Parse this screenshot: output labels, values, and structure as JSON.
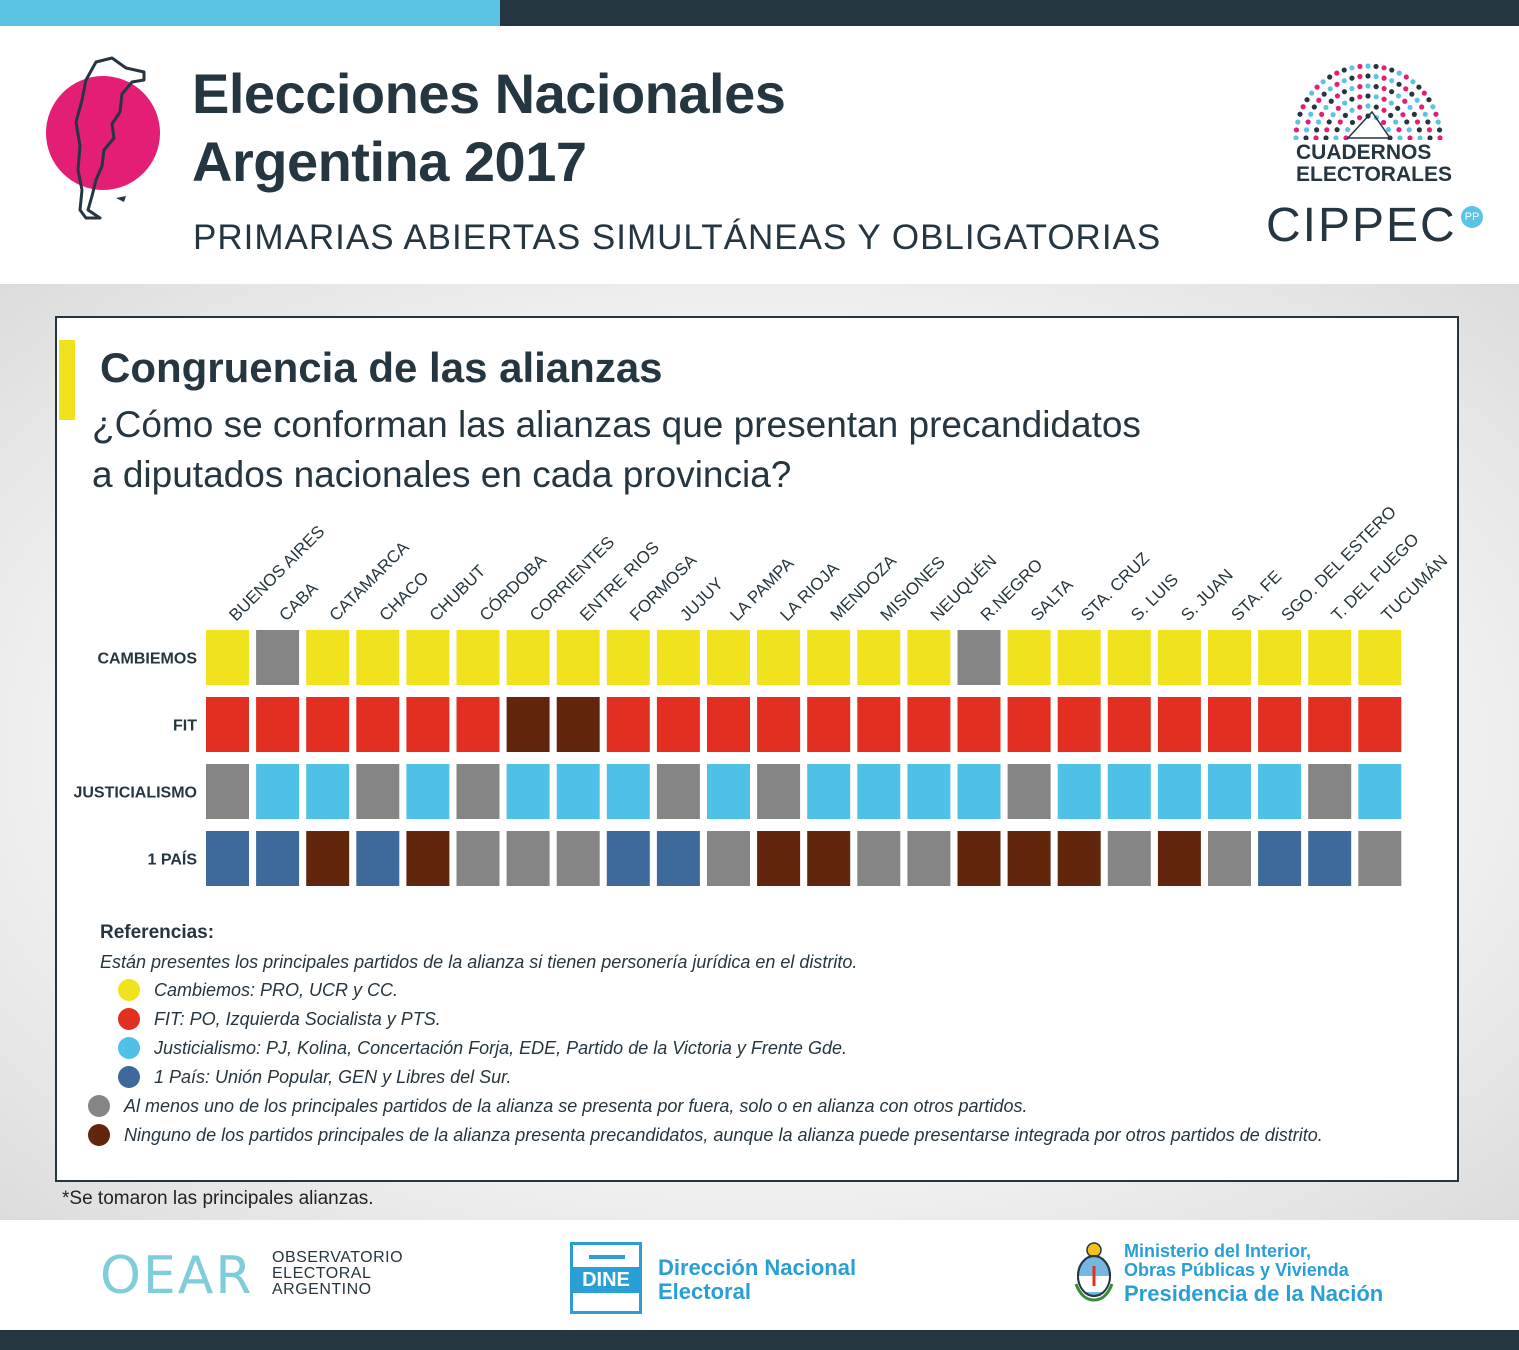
{
  "header": {
    "title_line1": "Elecciones Nacionales",
    "title_line2": "Argentina 2017",
    "subtitle": "PRIMARIAS ABIERTAS SIMULTÁNEAS Y OBLIGATORIAS",
    "brand_line1": "CUADERNOS",
    "brand_line2": "ELECTORALES",
    "org": "CIPPEC"
  },
  "card": {
    "title": "Congruencia de las alianzas",
    "question_line1": "¿Cómo se conforman las alianzas que presentan precandidatos",
    "question_line2": "a diputados nacionales en cada provincia?"
  },
  "colors": {
    "cambiemos": "#f1e21e",
    "fit": "#e32f22",
    "justicialismo": "#4fc0e6",
    "un_pais": "#3d6a9b",
    "fuera": "#858585",
    "ninguno": "#62260d",
    "accent": "#253640"
  },
  "chart_data": {
    "type": "heatmap",
    "title": "Congruencia de las alianzas",
    "categories": [
      "BUENOS AIRES",
      "CABA",
      "CATAMARCA",
      "CHACO",
      "CHUBUT",
      "CÓRDOBA",
      "CORRIENTES",
      "ENTRE RIOS",
      "FORMOSA",
      "JUJUY",
      "LA PAMPA",
      "LA RIOJA",
      "MENDOZA",
      "MISIONES",
      "NEUQUÉN",
      "R.NEGRO",
      "SALTA",
      "STA. CRUZ",
      "S. LUIS",
      "S. JUAN",
      "STA. FE",
      "SGO. DEL ESTERO",
      "T. DEL FUEGO",
      "TUCUMÁN"
    ],
    "series": [
      {
        "name": "CAMBIEMOS",
        "values": [
          "cambiemos",
          "fuera",
          "cambiemos",
          "cambiemos",
          "cambiemos",
          "cambiemos",
          "cambiemos",
          "cambiemos",
          "cambiemos",
          "cambiemos",
          "cambiemos",
          "cambiemos",
          "cambiemos",
          "cambiemos",
          "cambiemos",
          "fuera",
          "cambiemos",
          "cambiemos",
          "cambiemos",
          "cambiemos",
          "cambiemos",
          "cambiemos",
          "cambiemos",
          "cambiemos"
        ]
      },
      {
        "name": "FIT",
        "values": [
          "fit",
          "fit",
          "fit",
          "fit",
          "fit",
          "fit",
          "ninguno",
          "ninguno",
          "fit",
          "fit",
          "fit",
          "fit",
          "fit",
          "fit",
          "fit",
          "fit",
          "fit",
          "fit",
          "fit",
          "fit",
          "fit",
          "fit",
          "fit",
          "fit"
        ]
      },
      {
        "name": "JUSTICIALISMO",
        "values": [
          "fuera",
          "justicialismo",
          "justicialismo",
          "fuera",
          "justicialismo",
          "fuera",
          "justicialismo",
          "justicialismo",
          "justicialismo",
          "fuera",
          "justicialismo",
          "fuera",
          "justicialismo",
          "justicialismo",
          "justicialismo",
          "justicialismo",
          "fuera",
          "justicialismo",
          "justicialismo",
          "justicialismo",
          "justicialismo",
          "justicialismo",
          "fuera",
          "justicialismo"
        ]
      },
      {
        "name": "1 PAÍS",
        "values": [
          "un_pais",
          "un_pais",
          "ninguno",
          "un_pais",
          "ninguno",
          "fuera",
          "fuera",
          "fuera",
          "un_pais",
          "un_pais",
          "fuera",
          "ninguno",
          "ninguno",
          "fuera",
          "fuera",
          "ninguno",
          "ninguno",
          "ninguno",
          "fuera",
          "ninguno",
          "fuera",
          "un_pais",
          "un_pais",
          "fuera"
        ]
      }
    ]
  },
  "references": {
    "title": "Referencias:",
    "intro": "Están presentes los principales partidos de la alianza si tienen personería jurídica en el distrito.",
    "items": [
      {
        "key": "cambiemos",
        "text": "Cambiemos: PRO, UCR y CC."
      },
      {
        "key": "fit",
        "text": "FIT: PO, Izquierda Socialista y PTS."
      },
      {
        "key": "justicialismo",
        "text": "Justicialismo: PJ, Kolina, Concertación Forja, EDE, Partido de la Victoria y Frente Gde."
      },
      {
        "key": "un_pais",
        "text": "1 País: Unión Popular, GEN y Libres del Sur."
      },
      {
        "key": "fuera",
        "text": "Al menos uno de los principales partidos de la alianza se presenta por fuera, solo o en alianza con otros partidos."
      },
      {
        "key": "ninguno",
        "text": "Ninguno de los partidos principales de la alianza presenta precandidatos, aunque la alianza puede presentarse integrada por otros partidos de distrito."
      }
    ]
  },
  "footnote": "*Se tomaron las principales alianzas.",
  "footer": {
    "oear_mark": "OEAR",
    "oear_line1": "OBSERVATORIO",
    "oear_line2": "ELECTORAL",
    "oear_line3": "ARGENTINO",
    "dine_mark": "DINE",
    "dine_line1": "Dirección Nacional",
    "dine_line2": "Electoral",
    "min_line1": "Ministerio del Interior,",
    "min_line2": "Obras Públicas y Vivienda",
    "min_line3": "Presidencia de la Nación"
  }
}
